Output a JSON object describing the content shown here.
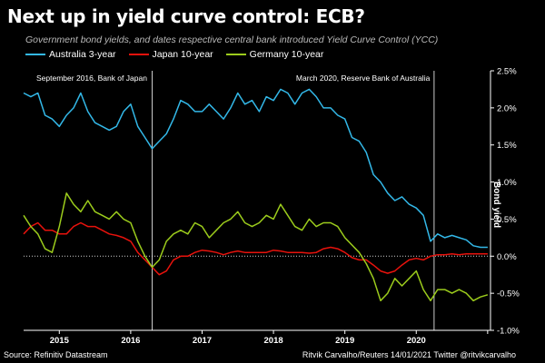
{
  "title": "Next up in yield curve control: ECB?",
  "subtitle": "Government bond yields, and dates respective central bank introduced Yield Curve Control (YCC)",
  "source": "Source: Refinitiv Datastream",
  "credit": "Ritvik Carvalho/Reuters 14/01/2021 Twitter @ritvikcarvalho",
  "colors": {
    "background": "#000000",
    "australia": "#33b8e8",
    "japan": "#e8120c",
    "germany": "#9ccc1c"
  },
  "chart_data": {
    "type": "line",
    "title": "Next up in yield curve control: ECB?",
    "subtitle": "Government bond yields, and dates respective central bank introduced Yield Curve Control (YCC)",
    "xlabel": "",
    "ylabel": "Bond yield",
    "xlim": [
      2014.5,
      2021.04
    ],
    "ylim": [
      -1.0,
      2.5
    ],
    "x_ticks": [
      2015,
      2016,
      2017,
      2018,
      2019,
      2020
    ],
    "y_ticks": [
      "2.5%",
      "2.0%",
      "1.5%",
      "1.0%",
      "0.5%",
      "0.0%",
      "-0.5%",
      "-1.0%"
    ],
    "y_tick_values": [
      2.5,
      2.0,
      1.5,
      1.0,
      0.5,
      0.0,
      -0.5,
      -1.0
    ],
    "grid": false,
    "legend_position": "top",
    "annotations": [
      {
        "x": 2016.3,
        "text": "September 2016, Bank of Japan"
      },
      {
        "x": 2020.25,
        "text": "March 2020, Reserve Bank of Australia"
      }
    ],
    "series": [
      {
        "name": "Australia 3-year",
        "color": "#33b8e8",
        "x": [
          2014.5,
          2014.6,
          2014.7,
          2014.8,
          2014.9,
          2015.0,
          2015.1,
          2015.2,
          2015.3,
          2015.4,
          2015.5,
          2015.6,
          2015.7,
          2015.8,
          2015.9,
          2016.0,
          2016.1,
          2016.2,
          2016.3,
          2016.4,
          2016.5,
          2016.6,
          2016.7,
          2016.8,
          2016.9,
          2017.0,
          2017.1,
          2017.2,
          2017.3,
          2017.4,
          2017.5,
          2017.6,
          2017.7,
          2017.8,
          2017.9,
          2018.0,
          2018.1,
          2018.2,
          2018.3,
          2018.4,
          2018.5,
          2018.6,
          2018.7,
          2018.8,
          2018.9,
          2019.0,
          2019.1,
          2019.2,
          2019.3,
          2019.4,
          2019.5,
          2019.6,
          2019.7,
          2019.8,
          2019.9,
          2020.0,
          2020.1,
          2020.2,
          2020.3,
          2020.4,
          2020.5,
          2020.6,
          2020.7,
          2020.8,
          2020.9,
          2021.0
        ],
        "y": [
          2.2,
          2.15,
          2.2,
          1.9,
          1.85,
          1.75,
          1.9,
          2.0,
          2.2,
          1.95,
          1.8,
          1.75,
          1.7,
          1.75,
          1.95,
          2.05,
          1.75,
          1.6,
          1.45,
          1.55,
          1.65,
          1.85,
          2.1,
          2.05,
          1.95,
          1.95,
          2.05,
          1.95,
          1.85,
          2.0,
          2.2,
          2.05,
          2.1,
          1.95,
          2.15,
          2.1,
          2.25,
          2.2,
          2.05,
          2.2,
          2.25,
          2.15,
          2.0,
          2.0,
          1.9,
          1.85,
          1.6,
          1.55,
          1.4,
          1.1,
          1.0,
          0.85,
          0.75,
          0.8,
          0.7,
          0.65,
          0.55,
          0.2,
          0.3,
          0.25,
          0.28,
          0.25,
          0.22,
          0.14,
          0.12,
          0.12
        ]
      },
      {
        "name": "Japan 10-year",
        "color": "#e8120c",
        "x": [
          2014.5,
          2014.6,
          2014.7,
          2014.8,
          2014.9,
          2015.0,
          2015.1,
          2015.2,
          2015.3,
          2015.4,
          2015.5,
          2015.6,
          2015.7,
          2015.8,
          2015.9,
          2016.0,
          2016.1,
          2016.2,
          2016.3,
          2016.4,
          2016.5,
          2016.6,
          2016.7,
          2016.8,
          2016.9,
          2017.0,
          2017.1,
          2017.2,
          2017.3,
          2017.4,
          2017.5,
          2017.6,
          2017.7,
          2017.8,
          2017.9,
          2018.0,
          2018.1,
          2018.2,
          2018.3,
          2018.4,
          2018.5,
          2018.6,
          2018.7,
          2018.8,
          2018.9,
          2019.0,
          2019.1,
          2019.2,
          2019.3,
          2019.4,
          2019.5,
          2019.6,
          2019.7,
          2019.8,
          2019.9,
          2020.0,
          2020.1,
          2020.2,
          2020.3,
          2020.4,
          2020.5,
          2020.6,
          2020.7,
          2020.8,
          2020.9,
          2021.0
        ],
        "y": [
          0.3,
          0.4,
          0.45,
          0.35,
          0.35,
          0.3,
          0.3,
          0.4,
          0.45,
          0.4,
          0.4,
          0.35,
          0.3,
          0.28,
          0.25,
          0.2,
          0.05,
          -0.05,
          -0.15,
          -0.25,
          -0.2,
          -0.05,
          0.0,
          0.0,
          0.05,
          0.08,
          0.07,
          0.05,
          0.02,
          0.05,
          0.07,
          0.05,
          0.05,
          0.05,
          0.05,
          0.08,
          0.07,
          0.05,
          0.05,
          0.05,
          0.04,
          0.05,
          0.1,
          0.12,
          0.1,
          0.05,
          -0.02,
          -0.05,
          -0.05,
          -0.12,
          -0.2,
          -0.23,
          -0.2,
          -0.12,
          -0.05,
          -0.03,
          -0.05,
          0.0,
          0.02,
          0.02,
          0.03,
          0.02,
          0.03,
          0.03,
          0.03,
          0.03
        ]
      },
      {
        "name": "Germany 10-year",
        "color": "#9ccc1c",
        "x": [
          2014.5,
          2014.6,
          2014.7,
          2014.8,
          2014.9,
          2015.0,
          2015.1,
          2015.2,
          2015.3,
          2015.4,
          2015.5,
          2015.6,
          2015.7,
          2015.8,
          2015.9,
          2016.0,
          2016.1,
          2016.2,
          2016.3,
          2016.4,
          2016.5,
          2016.6,
          2016.7,
          2016.8,
          2016.9,
          2017.0,
          2017.1,
          2017.2,
          2017.3,
          2017.4,
          2017.5,
          2017.6,
          2017.7,
          2017.8,
          2017.9,
          2018.0,
          2018.1,
          2018.2,
          2018.3,
          2018.4,
          2018.5,
          2018.6,
          2018.7,
          2018.8,
          2018.9,
          2019.0,
          2019.1,
          2019.2,
          2019.3,
          2019.4,
          2019.5,
          2019.6,
          2019.7,
          2019.8,
          2019.9,
          2020.0,
          2020.1,
          2020.2,
          2020.3,
          2020.4,
          2020.5,
          2020.6,
          2020.7,
          2020.8,
          2020.9,
          2021.0
        ],
        "y": [
          0.55,
          0.4,
          0.3,
          0.1,
          0.05,
          0.4,
          0.85,
          0.7,
          0.6,
          0.75,
          0.6,
          0.55,
          0.5,
          0.6,
          0.5,
          0.45,
          0.2,
          0.0,
          -0.15,
          -0.05,
          0.2,
          0.3,
          0.35,
          0.3,
          0.45,
          0.4,
          0.25,
          0.35,
          0.45,
          0.5,
          0.6,
          0.45,
          0.4,
          0.45,
          0.55,
          0.5,
          0.7,
          0.55,
          0.4,
          0.35,
          0.5,
          0.4,
          0.45,
          0.45,
          0.4,
          0.25,
          0.15,
          0.05,
          -0.1,
          -0.3,
          -0.6,
          -0.5,
          -0.3,
          -0.4,
          -0.3,
          -0.2,
          -0.45,
          -0.6,
          -0.45,
          -0.45,
          -0.5,
          -0.45,
          -0.5,
          -0.6,
          -0.55,
          -0.52
        ]
      }
    ]
  }
}
